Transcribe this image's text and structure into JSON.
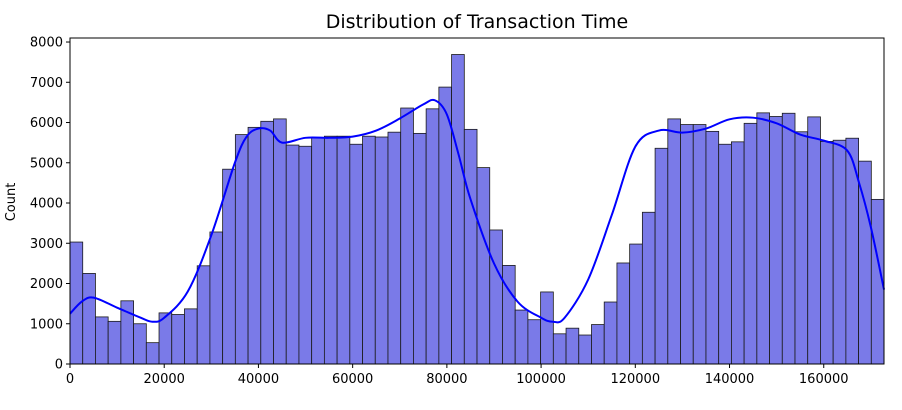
{
  "chart_data": {
    "type": "bar",
    "title": "Distribution of Transaction Time",
    "xlabel": "",
    "ylabel": "Count",
    "xlim": [
      0,
      172792
    ],
    "ylim": [
      0,
      8100
    ],
    "x_ticks": [
      0,
      20000,
      40000,
      60000,
      80000,
      100000,
      120000,
      140000,
      160000
    ],
    "y_ticks": [
      0,
      1000,
      2000,
      3000,
      4000,
      5000,
      6000,
      7000,
      8000
    ],
    "bin_width": 2700,
    "bin_starts": [
      0,
      2700,
      5400,
      8100,
      10800,
      13500,
      16200,
      18900,
      21600,
      24300,
      27000,
      29700,
      32400,
      35100,
      37800,
      40500,
      43200,
      45900,
      48600,
      51300,
      54000,
      56700,
      59400,
      62100,
      64800,
      67500,
      70200,
      72900,
      75600,
      78300,
      81000,
      83700,
      86400,
      89100,
      91800,
      94500,
      97200,
      99900,
      102600,
      105300,
      108000,
      110700,
      113400,
      116100,
      118800,
      121500,
      124200,
      126900,
      129600,
      132300,
      135000,
      137700,
      140400,
      143100,
      145800,
      148500,
      151200,
      153900,
      156600,
      159300,
      162000,
      164700,
      167400,
      170100
    ],
    "values": [
      3030,
      2250,
      1170,
      1060,
      1570,
      1000,
      530,
      1270,
      1230,
      1370,
      2440,
      3280,
      4840,
      5700,
      5880,
      6030,
      6090,
      5440,
      5410,
      5620,
      5660,
      5660,
      5460,
      5660,
      5640,
      5760,
      6360,
      5730,
      6340,
      6880,
      7690,
      5830,
      4880,
      3330,
      2450,
      1340,
      1100,
      1790,
      750,
      890,
      720,
      980,
      1540,
      2510,
      2980,
      3770,
      5360,
      6090,
      5950,
      5950,
      5780,
      5460,
      5520,
      5980,
      6240,
      6150,
      6230,
      5770,
      6140,
      5530,
      5560,
      5610,
      5040,
      4090
    ],
    "kde": {
      "x": [
        0,
        2500,
        5000,
        10000,
        15000,
        17500,
        20000,
        25000,
        30000,
        35000,
        37500,
        40000,
        42500,
        45000,
        50000,
        55000,
        60000,
        65000,
        70000,
        75000,
        77500,
        80000,
        82500,
        85000,
        90000,
        95000,
        100000,
        102500,
        105000,
        110000,
        115000,
        120000,
        125000,
        130000,
        135000,
        140000,
        145000,
        150000,
        155000,
        160000,
        165000,
        167500,
        170000,
        172792
      ],
      "y": [
        1250,
        1550,
        1650,
        1400,
        1150,
        1050,
        1150,
        1800,
        3200,
        5000,
        5650,
        5850,
        5800,
        5500,
        5620,
        5620,
        5650,
        5800,
        6100,
        6450,
        6550,
        6200,
        5200,
        4100,
        2500,
        1550,
        1150,
        1050,
        1150,
        2100,
        3700,
        5400,
        5800,
        5750,
        5850,
        6080,
        6120,
        5980,
        5700,
        5550,
        5300,
        4500,
        3400,
        1850
      ]
    },
    "colors": {
      "bar_fill": "#7a7ae8",
      "bar_edge": "#1a1a1a",
      "kde_line": "#0000ff"
    },
    "grid": false,
    "legend": false
  }
}
